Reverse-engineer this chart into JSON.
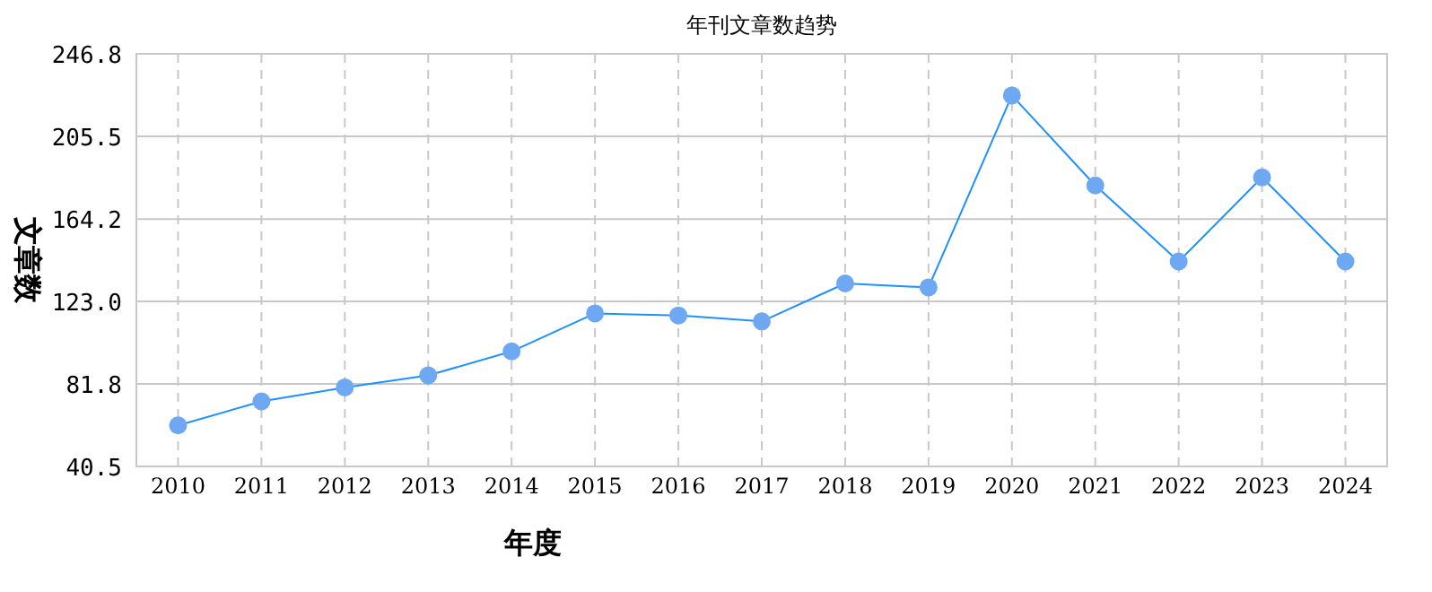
{
  "chart_data": {
    "type": "line",
    "title": "年刊文章数趋势",
    "xlabel": "年度",
    "ylabel": "文章数",
    "categories": [
      "2010",
      "2011",
      "2012",
      "2013",
      "2014",
      "2015",
      "2016",
      "2017",
      "2018",
      "2019",
      "2020",
      "2021",
      "2022",
      "2023",
      "2024"
    ],
    "series": [
      {
        "color": "#1e90ff",
        "values": [
          61,
          73,
          80,
          86,
          98,
          117,
          116,
          113,
          132,
          130,
          226,
          181,
          143,
          185,
          143
        ]
      }
    ],
    "ylim": [
      40.5,
      246.8
    ],
    "yticks": [
      {
        "value": 40.5,
        "label": "40.5"
      },
      {
        "value": 81.8,
        "label": "81.8"
      },
      {
        "value": 123.0,
        "label": "123.0"
      },
      {
        "value": 164.2,
        "label": "164.2"
      },
      {
        "value": 205.5,
        "label": "205.5"
      },
      {
        "value": 246.8,
        "label": "246.8"
      }
    ],
    "grid": true,
    "marker": "circle",
    "line_style": "solid"
  }
}
